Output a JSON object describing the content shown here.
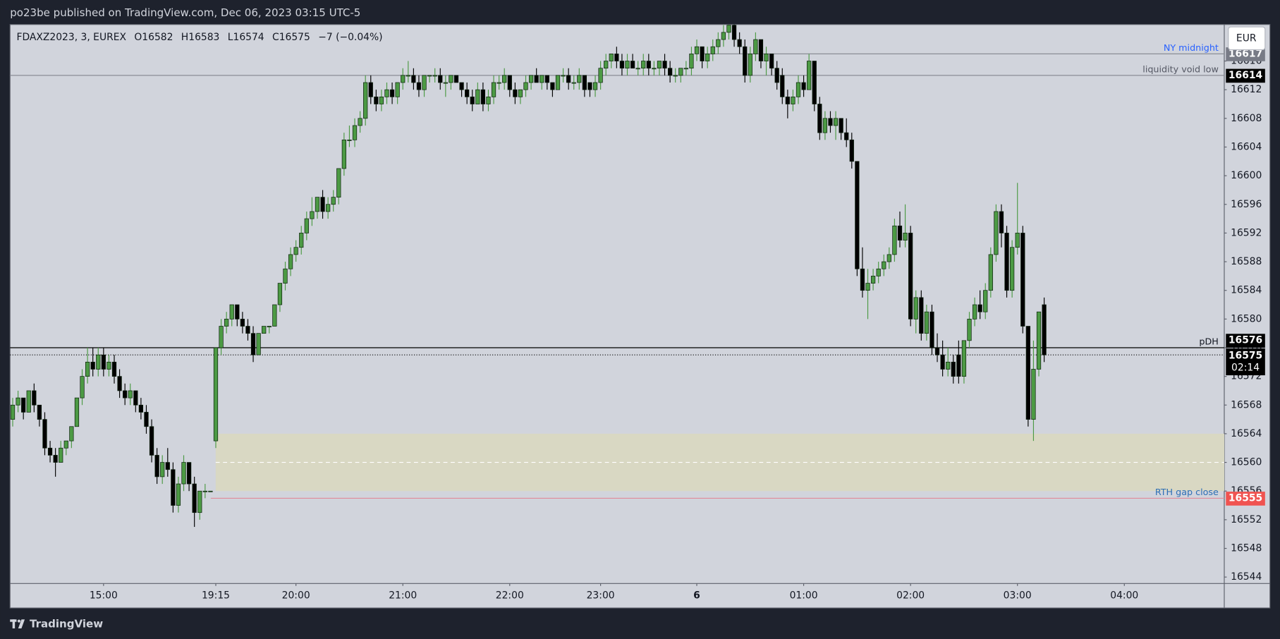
{
  "header": "po23be published on TradingView.com, Dec 06, 2023 03:15 UTC-5",
  "footer": "TradingView",
  "chart_data": {
    "type": "candlestick",
    "legend": {
      "symbol": "FDAXZ2023, 3, EUREX",
      "items": [
        {
          "label": "O",
          "value": 16582
        },
        {
          "label": "H",
          "value": 16583
        },
        {
          "label": "L",
          "value": 16574
        },
        {
          "label": "C",
          "value": 16575
        }
      ],
      "change": "−7 (−0.04%)"
    },
    "currency": "EUR",
    "up_color": "#4c9a44",
    "down_color": "#000000",
    "ylim": [
      16543.1,
      16621.1
    ],
    "yticks": [
      16544,
      16548,
      16552,
      16556,
      16560,
      16564,
      16568,
      16572,
      16576,
      16580,
      16584,
      16588,
      16592,
      16596,
      16600,
      16604,
      16608,
      16612,
      16616
    ],
    "xlim": [
      -0.5,
      226.7
    ],
    "xticks": [
      {
        "value": 17,
        "label": "15:00"
      },
      {
        "value": 38,
        "label": "19:15"
      },
      {
        "value": 53,
        "label": "20:00"
      },
      {
        "value": 73,
        "label": "21:00"
      },
      {
        "value": 93,
        "label": "22:00"
      },
      {
        "value": 110,
        "label": "23:00"
      },
      {
        "value": 128,
        "label": "6",
        "bold": true
      },
      {
        "value": 148,
        "label": "01:00"
      },
      {
        "value": 168,
        "label": "02:00"
      },
      {
        "value": 188,
        "label": "03:00"
      },
      {
        "value": 208,
        "label": "04:00"
      }
    ],
    "grid": false,
    "zone": {
      "top": 16564,
      "bottom": 16556
    },
    "lines": [
      {
        "label": "NY midnight",
        "value": 16617,
        "color": "#8a8d96",
        "text_color": "#2962ff",
        "badge_color": "#787b86"
      },
      {
        "label": "liquidity void low",
        "value": 16614,
        "color": "#8a8d96",
        "text_color": "#555864",
        "badge_color": "#000000"
      },
      {
        "label": "pDH",
        "value": 16576,
        "color": "#000000",
        "text_color": "#131722",
        "badge_color": "#000000"
      },
      {
        "label": "RTH gap close",
        "value": 16555,
        "color": "#e08a9a",
        "text_color": "#2e6fb5",
        "badge_color": "#f05350"
      }
    ],
    "last": {
      "value": 16575,
      "countdown": "02:14"
    },
    "ohlc": [
      [
        16566,
        16569,
        16565,
        16568
      ],
      [
        16568,
        16570,
        16567,
        16569
      ],
      [
        16569,
        16569,
        16566,
        16567
      ],
      [
        16567,
        16570,
        16567,
        16570
      ],
      [
        16570,
        16571,
        16567,
        16568
      ],
      [
        16568,
        16568,
        16565,
        16566
      ],
      [
        16566,
        16567,
        16561,
        16562
      ],
      [
        16562,
        16563,
        16560,
        16561
      ],
      [
        16561,
        16562,
        16558,
        16560
      ],
      [
        16560,
        16563,
        16560,
        16562
      ],
      [
        16562,
        16563,
        16561,
        16563
      ],
      [
        16563,
        16565,
        16562,
        16565
      ],
      [
        16565,
        16569,
        16565,
        16569
      ],
      [
        16569,
        16573,
        16568,
        16572
      ],
      [
        16572,
        16576,
        16571,
        16574
      ],
      [
        16574,
        16576,
        16572,
        16573
      ],
      [
        16573,
        16576,
        16572,
        16575
      ],
      [
        16575,
        16576,
        16572,
        16573
      ],
      [
        16573,
        16575,
        16572,
        16574
      ],
      [
        16574,
        16575,
        16571,
        16572
      ],
      [
        16572,
        16573,
        16569,
        16570
      ],
      [
        16570,
        16571,
        16568,
        16569
      ],
      [
        16569,
        16571,
        16568,
        16570
      ],
      [
        16570,
        16570,
        16567,
        16568
      ],
      [
        16568,
        16569,
        16566,
        16567
      ],
      [
        16567,
        16568,
        16564,
        16565
      ],
      [
        16565,
        16566,
        16560,
        16561
      ],
      [
        16561,
        16562,
        16557,
        16558
      ],
      [
        16558,
        16561,
        16557,
        16560
      ],
      [
        16560,
        16562,
        16558,
        16559
      ],
      [
        16559,
        16560,
        16553,
        16554
      ],
      [
        16554,
        16558,
        16553,
        16557
      ],
      [
        16557,
        16561,
        16556,
        16560
      ],
      [
        16560,
        16560,
        16556,
        16557
      ],
      [
        16557,
        16558,
        16551,
        16553
      ],
      [
        16553,
        16556,
        16552,
        16556
      ],
      [
        16556,
        16557,
        16555,
        16556
      ],
      [
        16556,
        16556,
        16556,
        16556
      ],
      [
        16563,
        16576,
        16562,
        16576
      ],
      [
        16576,
        16580,
        16575,
        16579
      ],
      [
        16579,
        16581,
        16578,
        16580
      ],
      [
        16580,
        16582,
        16579,
        16582
      ],
      [
        16582,
        16582,
        16579,
        16580
      ],
      [
        16580,
        16581,
        16578,
        16579
      ],
      [
        16579,
        16580,
        16577,
        16578
      ],
      [
        16578,
        16579,
        16574,
        16575
      ],
      [
        16575,
        16578,
        16575,
        16578
      ],
      [
        16578,
        16579,
        16578,
        16579
      ],
      [
        16579,
        16579,
        16578,
        16579
      ],
      [
        16579,
        16582,
        16579,
        16582
      ],
      [
        16582,
        16585,
        16581,
        16585
      ],
      [
        16585,
        16588,
        16584,
        16587
      ],
      [
        16587,
        16590,
        16586,
        16589
      ],
      [
        16589,
        16591,
        16588,
        16590
      ],
      [
        16590,
        16593,
        16589,
        16592
      ],
      [
        16592,
        16595,
        16591,
        16594
      ],
      [
        16594,
        16597,
        16593,
        16595
      ],
      [
        16595,
        16597,
        16594,
        16597
      ],
      [
        16597,
        16598,
        16594,
        16595
      ],
      [
        16595,
        16597,
        16594,
        16596
      ],
      [
        16596,
        16598,
        16595,
        16597
      ],
      [
        16597,
        16601,
        16596,
        16601
      ],
      [
        16601,
        16606,
        16600,
        16605
      ],
      [
        16605,
        16607,
        16604,
        16605
      ],
      [
        16605,
        16608,
        16604,
        16607
      ],
      [
        16607,
        16609,
        16606,
        16608
      ],
      [
        16608,
        16614,
        16607,
        16613
      ],
      [
        16613,
        16614,
        16610,
        16611
      ],
      [
        16611,
        16612,
        16609,
        16610
      ],
      [
        16610,
        16612,
        16609,
        16611
      ],
      [
        16611,
        16613,
        16610,
        16612
      ],
      [
        16612,
        16613,
        16610,
        16611
      ],
      [
        16611,
        16613,
        16610,
        16613
      ],
      [
        16613,
        16615,
        16612,
        16614
      ],
      [
        16614,
        16616,
        16613,
        16614
      ],
      [
        16614,
        16615,
        16612,
        16613
      ],
      [
        16613,
        16614,
        16611,
        16612
      ],
      [
        16612,
        16614,
        16611,
        16614
      ],
      [
        16614,
        16614,
        16613,
        16614
      ],
      [
        16614,
        16615,
        16613,
        16614
      ],
      [
        16614,
        16615,
        16612,
        16613
      ],
      [
        16613,
        16614,
        16611,
        16613
      ],
      [
        16613,
        16614,
        16612,
        16614
      ],
      [
        16614,
        16614,
        16613,
        16613
      ],
      [
        16613,
        16613,
        16611,
        16612
      ],
      [
        16612,
        16613,
        16610,
        16611
      ],
      [
        16611,
        16612,
        16609,
        16610
      ],
      [
        16610,
        16613,
        16610,
        16612
      ],
      [
        16612,
        16613,
        16609,
        16610
      ],
      [
        16610,
        16612,
        16609,
        16611
      ],
      [
        16611,
        16614,
        16610,
        16613
      ],
      [
        16613,
        16614,
        16612,
        16613
      ],
      [
        16613,
        16615,
        16612,
        16614
      ],
      [
        16614,
        16614,
        16611,
        16612
      ],
      [
        16612,
        16613,
        16610,
        16611
      ],
      [
        16611,
        16612,
        16610,
        16612
      ],
      [
        16612,
        16614,
        16611,
        16613
      ],
      [
        16613,
        16614,
        16612,
        16614
      ],
      [
        16614,
        16615,
        16613,
        16613
      ],
      [
        16613,
        16614,
        16612,
        16614
      ],
      [
        16614,
        16614,
        16612,
        16613
      ],
      [
        16613,
        16613,
        16611,
        16612
      ],
      [
        16612,
        16614,
        16612,
        16614
      ],
      [
        16614,
        16615,
        16613,
        16614
      ],
      [
        16614,
        16615,
        16612,
        16613
      ],
      [
        16613,
        16614,
        16612,
        16613
      ],
      [
        16613,
        16615,
        16612,
        16614
      ],
      [
        16614,
        16614,
        16611,
        16612
      ],
      [
        16613,
        16613,
        16611,
        16612
      ],
      [
        16612,
        16614,
        16611,
        16613
      ],
      [
        16613,
        16616,
        16612,
        16615
      ],
      [
        16615,
        16617,
        16614,
        16616
      ],
      [
        16616,
        16617,
        16615,
        16617
      ],
      [
        16617,
        16618,
        16615,
        16616
      ],
      [
        16616,
        16617,
        16614,
        16615
      ],
      [
        16615,
        16617,
        16614,
        16616
      ],
      [
        16616,
        16617,
        16615,
        16615
      ],
      [
        16615,
        16616,
        16614,
        16615
      ],
      [
        16615,
        16617,
        16614,
        16616
      ],
      [
        16616,
        16617,
        16614,
        16615
      ],
      [
        16615,
        16616,
        16614,
        16615
      ],
      [
        16615,
        16616,
        16614,
        16616
      ],
      [
        16616,
        16617,
        16614,
        16615
      ],
      [
        16615,
        16616,
        16613,
        16614
      ],
      [
        16614,
        16615,
        16613,
        16614
      ],
      [
        16614,
        16615,
        16613,
        16615
      ],
      [
        16615,
        16616,
        16614,
        16615
      ],
      [
        16615,
        16618,
        16614,
        16617
      ],
      [
        16617,
        16619,
        16616,
        16618
      ],
      [
        16618,
        16618,
        16615,
        16616
      ],
      [
        16616,
        16618,
        16615,
        16617
      ],
      [
        16617,
        16619,
        16616,
        16618
      ],
      [
        16618,
        16620,
        16617,
        16619
      ],
      [
        16619,
        16621,
        16618,
        16620
      ],
      [
        16620,
        16622,
        16619,
        16621
      ],
      [
        16621,
        16622,
        16618,
        16619
      ],
      [
        16619,
        16620,
        16617,
        16618
      ],
      [
        16618,
        16619,
        16613,
        16614
      ],
      [
        16614,
        16618,
        16613,
        16617
      ],
      [
        16617,
        16620,
        16616,
        16619
      ],
      [
        16619,
        16619,
        16615,
        16616
      ],
      [
        16616,
        16618,
        16614,
        16617
      ],
      [
        16617,
        16617,
        16614,
        16615
      ],
      [
        16615,
        16616,
        16612,
        16613
      ],
      [
        16614,
        16615,
        16610,
        16611
      ],
      [
        16611,
        16612,
        16608,
        16610
      ],
      [
        16610,
        16612,
        16609,
        16611
      ],
      [
        16611,
        16614,
        16610,
        16613
      ],
      [
        16613,
        16614,
        16611,
        16612
      ],
      [
        16612,
        16617,
        16612,
        16616
      ],
      [
        16616,
        16616,
        16609,
        16610
      ],
      [
        16610,
        16611,
        16605,
        16606
      ],
      [
        16606,
        16609,
        16605,
        16608
      ],
      [
        16608,
        16609,
        16606,
        16607
      ],
      [
        16607,
        16609,
        16605,
        16608
      ],
      [
        16608,
        16608,
        16605,
        16606
      ],
      [
        16606,
        16608,
        16604,
        16605
      ],
      [
        16605,
        16606,
        16601,
        16602
      ],
      [
        16602,
        16602,
        16586,
        16587
      ],
      [
        16587,
        16590,
        16583,
        16584
      ],
      [
        16584,
        16587,
        16580,
        16585
      ],
      [
        16585,
        16587,
        16584,
        16586
      ],
      [
        16586,
        16588,
        16585,
        16587
      ],
      [
        16587,
        16589,
        16586,
        16588
      ],
      [
        16588,
        16590,
        16587,
        16589
      ],
      [
        16589,
        16594,
        16588,
        16593
      ],
      [
        16593,
        16595,
        16590,
        16591
      ],
      [
        16591,
        16596,
        16590,
        16592
      ],
      [
        16592,
        16593,
        16579,
        16580
      ],
      [
        16580,
        16584,
        16578,
        16583
      ],
      [
        16583,
        16584,
        16577,
        16578
      ],
      [
        16578,
        16582,
        16577,
        16581
      ],
      [
        16581,
        16582,
        16575,
        16576
      ],
      [
        16576,
        16578,
        16574,
        16575
      ],
      [
        16575,
        16577,
        16572,
        16573
      ],
      [
        16573,
        16576,
        16572,
        16574
      ],
      [
        16574,
        16575,
        16571,
        16572
      ],
      [
        16575,
        16577,
        16571,
        16572
      ],
      [
        16572,
        16577,
        16571,
        16577
      ],
      [
        16577,
        16581,
        16576,
        16580
      ],
      [
        16580,
        16583,
        16579,
        16582
      ],
      [
        16582,
        16584,
        16580,
        16581
      ],
      [
        16581,
        16585,
        16580,
        16584
      ],
      [
        16584,
        16590,
        16583,
        16589
      ],
      [
        16589,
        16596,
        16588,
        16595
      ],
      [
        16595,
        16596,
        16590,
        16592
      ],
      [
        16592,
        16593,
        16583,
        16584
      ],
      [
        16584,
        16591,
        16583,
        16590
      ],
      [
        16590,
        16599,
        16589,
        16592
      ],
      [
        16592,
        16593,
        16578,
        16579
      ],
      [
        16579,
        16579,
        16565,
        16566
      ],
      [
        16566,
        16577,
        16563,
        16573
      ],
      [
        16573,
        16581,
        16572,
        16581
      ],
      [
        16582,
        16583,
        16574,
        16575
      ]
    ]
  }
}
